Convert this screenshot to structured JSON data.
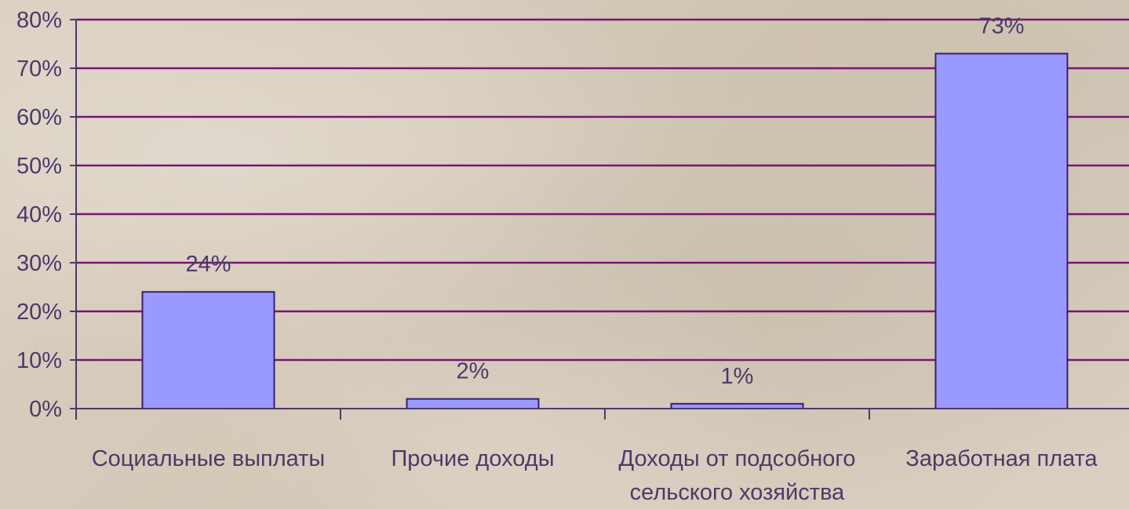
{
  "chart_data": {
    "type": "bar",
    "categories": [
      [
        "Социальные выплаты"
      ],
      [
        "Прочие доходы"
      ],
      [
        "Доходы от подсобного",
        "сельского хозяйства"
      ],
      [
        "Заработная плата"
      ]
    ],
    "values": [
      24,
      2,
      1,
      73
    ],
    "data_labels": [
      "24%",
      "2%",
      "1%",
      "73%"
    ],
    "y_ticks": [
      {
        "value": 0,
        "label": "0%"
      },
      {
        "value": 10,
        "label": "10%"
      },
      {
        "value": 20,
        "label": "20%"
      },
      {
        "value": 30,
        "label": "30%"
      },
      {
        "value": 40,
        "label": "40%"
      },
      {
        "value": 50,
        "label": "50%"
      },
      {
        "value": 60,
        "label": "60%"
      },
      {
        "value": 70,
        "label": "70%"
      },
      {
        "value": 80,
        "label": "80%"
      }
    ],
    "ylim": [
      0,
      80
    ],
    "title": "",
    "xlabel": "",
    "ylabel": "",
    "grid": true,
    "legend": "none",
    "colors": {
      "bar_fill": "#9999ff",
      "bar_stroke": "#3b1f6a",
      "grid": "#7b1474",
      "axis": "#4b3a67",
      "text": "#4b3a67",
      "background": "#d7cbbb"
    }
  }
}
